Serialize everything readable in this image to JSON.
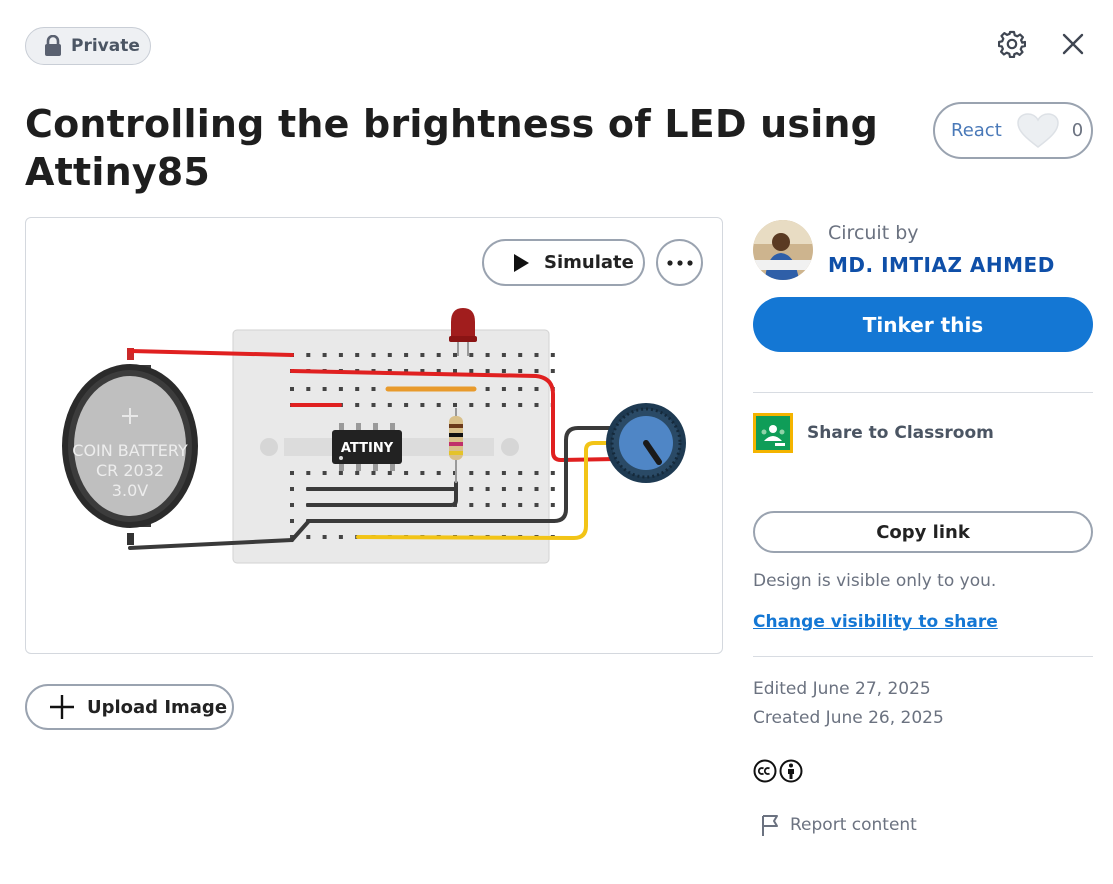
{
  "header": {
    "privacy_label": "Private",
    "title": "Controlling the brightness of LED using Attiny85"
  },
  "react": {
    "label": "React",
    "count": "0"
  },
  "canvas": {
    "simulate_label": "Simulate",
    "battery_line1": "COIN BATTERY",
    "battery_line2": "CR 2032",
    "battery_line3": "3.0V",
    "chip_label": "ATTINY"
  },
  "upload": {
    "label": "Upload Image"
  },
  "author": {
    "prefix": "Circuit by",
    "name": "MD. IMTIAZ AHMED"
  },
  "actions": {
    "tinker_label": "Tinker this",
    "share_classroom_label": "Share to Classroom",
    "copy_link_label": "Copy link",
    "visibility_note": "Design is visible only to you.",
    "change_visibility_label": "Change visibility to share"
  },
  "meta": {
    "edited": "Edited June 27, 2025",
    "created": "Created June 26, 2025",
    "report_label": "Report content"
  },
  "colors": {
    "primary_button": "#1477d4",
    "author_link": "#0f4fa8",
    "wire_red": "#e02020",
    "wire_black": "#3a3a3a",
    "wire_yellow": "#f2c417",
    "wire_orange": "#e89a2c"
  }
}
